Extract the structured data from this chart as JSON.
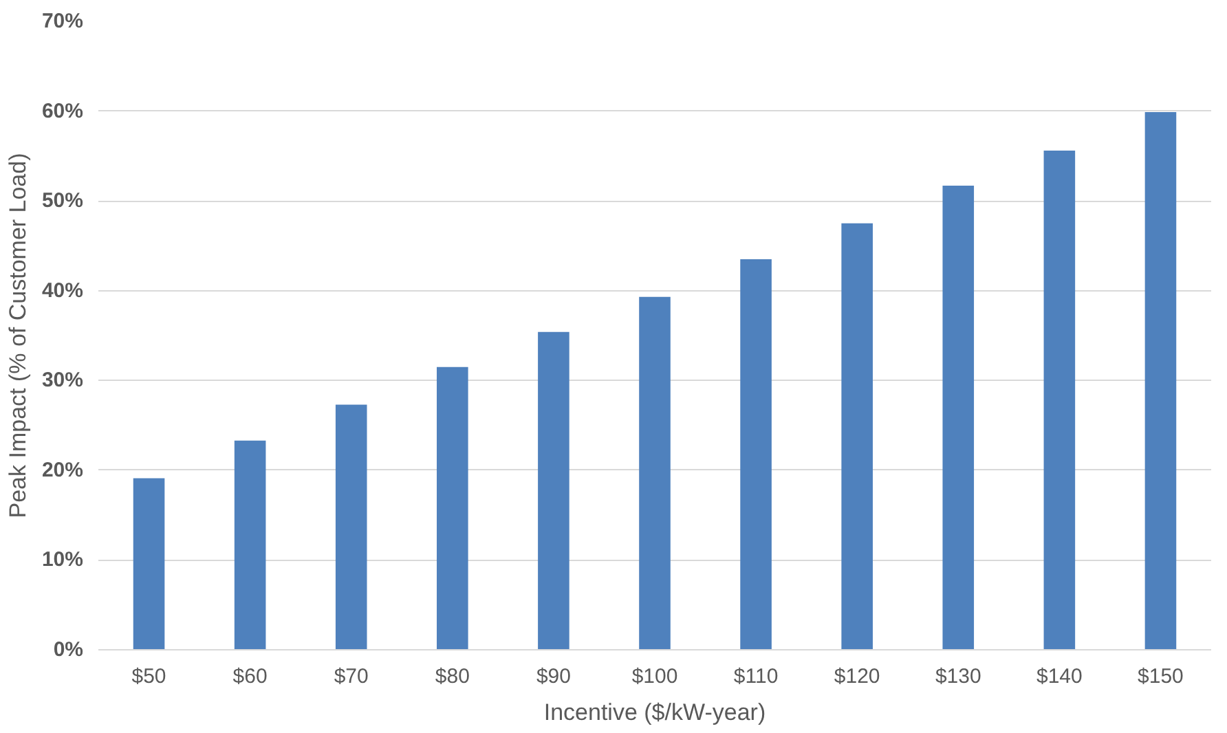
{
  "chart_data": {
    "type": "bar",
    "xlabel": "Incentive ($/kW-year)",
    "ylabel": "Peak Impact (% of Customer Load)",
    "categories": [
      "$50",
      "$60",
      "$70",
      "$80",
      "$90",
      "$100",
      "$110",
      "$120",
      "$130",
      "$140",
      "$150"
    ],
    "values": [
      19.1,
      23.3,
      27.3,
      31.5,
      35.4,
      39.3,
      43.5,
      47.5,
      51.7,
      55.6,
      59.9
    ],
    "color": "#4f81bd",
    "ylim": [
      0,
      70
    ],
    "yticks": [
      {
        "value": 0,
        "label": "0%"
      },
      {
        "value": 10,
        "label": "10%"
      },
      {
        "value": 20,
        "label": "20%"
      },
      {
        "value": 30,
        "label": "30%"
      },
      {
        "value": 40,
        "label": "40%"
      },
      {
        "value": 50,
        "label": "50%"
      },
      {
        "value": 60,
        "label": "60%"
      },
      {
        "value": 70,
        "label": "70%"
      }
    ],
    "grid": "y"
  }
}
